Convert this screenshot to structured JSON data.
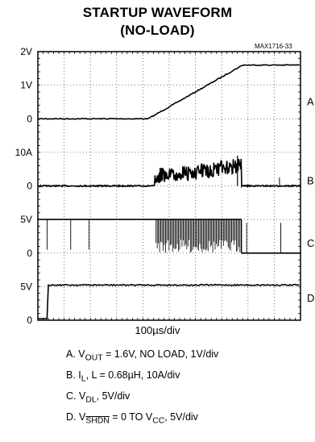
{
  "title_line1": "STARTUP WAVEFORM",
  "title_line2": "(NO-LOAD)",
  "figure_code": "MAX1716-33",
  "timebase": "100µs/div",
  "legend": {
    "a": {
      "prefix": "A. V",
      "sub": "OUT",
      "rest": " = 1.6V, NO LOAD, 1V/div"
    },
    "b": {
      "prefix": "B. I",
      "sub": "L",
      "rest": ", L = 0.68µH, 10A/div"
    },
    "c": {
      "prefix": "C. V",
      "sub": "DL",
      "rest": ", 5V/div"
    },
    "d": {
      "prefix": "D. V",
      "sub": "SHDN",
      "mid": " = 0 TO V",
      "sub2": "CC",
      "rest": ", 5V/div"
    }
  },
  "chart_data": {
    "type": "line",
    "x_divisions": 10,
    "x_unit": "100µs/div",
    "y_labels": [
      {
        "text": "2V",
        "channel": "A"
      },
      {
        "text": "1V",
        "channel": "A"
      },
      {
        "text": "0",
        "channel": "A"
      },
      {
        "text": "10A",
        "channel": "B"
      },
      {
        "text": "0",
        "channel": "B"
      },
      {
        "text": "5V",
        "channel": "C"
      },
      {
        "text": "0",
        "channel": "C"
      },
      {
        "text": "5V",
        "channel": "D"
      },
      {
        "text": "0",
        "channel": "D"
      }
    ],
    "channels": [
      "A",
      "B",
      "C",
      "D"
    ],
    "series": [
      {
        "name": "A",
        "unit": "V",
        "x_div": [
          0,
          4.2,
          7.8,
          10
        ],
        "y": [
          0,
          0,
          1.6,
          1.6
        ]
      },
      {
        "name": "B",
        "unit": "A",
        "x_div": [
          0,
          4.4,
          4.5,
          7.6,
          7.8,
          10
        ],
        "y": [
          0,
          0,
          3,
          6,
          0,
          0
        ]
      },
      {
        "name": "C",
        "unit": "V",
        "x_div": [
          0,
          4.5,
          7.7,
          7.8,
          10
        ],
        "y": [
          5,
          5,
          5,
          0,
          0
        ]
      },
      {
        "name": "D",
        "unit": "V",
        "x_div": [
          0,
          0.3,
          0.4,
          10
        ],
        "y": [
          0,
          0,
          5,
          5
        ]
      }
    ]
  }
}
